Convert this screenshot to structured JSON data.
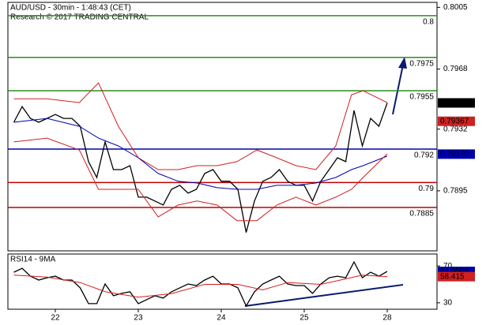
{
  "chart_data": [
    {
      "type": "line",
      "title": "AUD/USD - 30min - 1:48:43 (CET)",
      "subtitle": "Research © 2017 TRADING CENTRAL",
      "xlim": [
        -0.571,
        4.6
      ],
      "ylim": [
        0.7859,
        0.8008
      ],
      "yticks": [
        0.8005,
        0.7968,
        0.7932,
        0.7895
      ],
      "levels": [
        {
          "value": 0.8,
          "color": "#2e8b22"
        },
        {
          "value": 0.7975,
          "color": "#2e8b22"
        },
        {
          "value": 0.7955,
          "color": "#2e8b22"
        },
        {
          "value": 0.792,
          "color": "#0000b0"
        },
        {
          "value": 0.79,
          "color": "#c00000"
        },
        {
          "value": 0.7885,
          "color": "#c00000"
        }
      ],
      "markers": [
        {
          "value": 0.79477,
          "color": "#000000"
        },
        {
          "value": 0.79367,
          "color": "#d02020"
        },
        {
          "value": {
            "value": 0.7917,
            "label": "0.79170"
          },
          "color": "#0000b0"
        }
      ],
      "series": [
        {
          "color": "#000000",
          "x": [
            -0.5,
            -0.4,
            -0.3,
            -0.2,
            -0.1,
            0,
            0.1,
            0.2,
            0.3,
            0.4,
            0.5,
            0.6,
            0.7,
            0.8,
            0.9,
            1,
            1.1,
            1.2,
            1.3,
            1.4,
            1.5,
            1.6,
            1.7,
            1.8,
            1.9,
            2,
            2.1,
            2.2,
            2.3,
            2.4,
            2.5,
            2.6,
            2.7,
            2.8,
            2.9,
            3,
            3.1,
            3.2,
            3.3,
            3.4,
            3.5,
            3.6,
            3.7,
            3.8,
            3.9,
            4
          ],
          "values": [
            0.79361,
            0.79455,
            0.79384,
            0.79361,
            0.79384,
            0.79408,
            0.79384,
            0.79384,
            0.79337,
            0.79125,
            0.7903,
            0.79243,
            0.79077,
            0.79077,
            0.79101,
            0.78912,
            0.78912,
            0.78889,
            0.78865,
            0.78959,
            0.78983,
            0.78936,
            0.78959,
            0.79054,
            0.79077,
            0.79007,
            0.79007,
            0.78959,
            0.787,
            0.78889,
            0.79007,
            0.7903,
            0.79077,
            0.79007,
            0.78983,
            0.78983,
            0.78889,
            0.79007,
            0.79077,
            0.79148,
            0.79125,
            0.79432,
            0.79219,
            0.79384,
            0.79337,
            0.79477
          ]
        },
        {
          "color": "#d02020",
          "x": [
            -0.5,
            -0.1,
            0.29,
            0.52,
            0.76,
            1,
            1.24,
            1.48,
            1.71,
            1.95,
            2.19,
            2.43,
            2.67,
            2.9,
            3.14,
            3.38,
            3.57,
            3.71,
            4
          ],
          "values": [
            0.79502,
            0.79502,
            0.79479,
            0.79597,
            0.79337,
            0.79148,
            0.79077,
            0.79077,
            0.79101,
            0.79101,
            0.79125,
            0.79195,
            0.79148,
            0.79101,
            0.79077,
            0.79219,
            0.79526,
            0.7955,
            0.79479
          ]
        },
        {
          "color": "#0000b0",
          "x": [
            -0.5,
            -0.1,
            0.29,
            0.52,
            0.76,
            1,
            1.24,
            1.48,
            1.71,
            1.95,
            2.19,
            2.43,
            2.67,
            2.9,
            3.14,
            3.38,
            3.57,
            3.71,
            4
          ],
          "values": [
            0.79361,
            0.79384,
            0.79337,
            0.79266,
            0.79219,
            0.79148,
            0.79054,
            0.79007,
            0.78997,
            0.78969,
            0.78959,
            0.78959,
            0.78983,
            0.78983,
            0.78997,
            0.7903,
            0.79077,
            0.79101,
            0.79158
          ]
        },
        {
          "color": "#d02020",
          "x": [
            -0.5,
            -0.1,
            0.29,
            0.52,
            0.76,
            1,
            1.24,
            1.48,
            1.71,
            1.95,
            2.19,
            2.43,
            2.67,
            2.9,
            3.14,
            3.38,
            3.57,
            3.71,
            4
          ],
          "values": [
            0.79243,
            0.79266,
            0.79195,
            0.78959,
            0.78959,
            0.78959,
            0.78794,
            0.78865,
            0.78889,
            0.78865,
            0.78771,
            0.78771,
            0.78865,
            0.78912,
            0.78865,
            0.78912,
            0.78959,
            0.7903,
            0.79172
          ]
        }
      ]
    },
    {
      "type": "line",
      "title": "RSI14 - 9MA",
      "xlim": [
        -0.571,
        4.6
      ],
      "xticks": [
        {
          "value": 0,
          "label": "22"
        },
        {
          "value": 1,
          "label": "23"
        },
        {
          "value": 2,
          "label": "24"
        },
        {
          "value": 3,
          "label": "25"
        },
        {
          "value": 4,
          "label": "28"
        }
      ],
      "ylim": [
        23,
        83
      ],
      "yticks": [
        70,
        30
      ],
      "markers": [
        {
          "value": 64.0509,
          "color": "#0000b0"
        },
        {
          "value": 58.415,
          "color": "#d02020"
        }
      ],
      "series": [
        {
          "color": "#000000",
          "x": [
            -0.5,
            -0.4,
            -0.3,
            -0.2,
            -0.1,
            0,
            0.1,
            0.2,
            0.3,
            0.4,
            0.5,
            0.6,
            0.7,
            0.8,
            0.9,
            1,
            1.1,
            1.2,
            1.3,
            1.4,
            1.5,
            1.6,
            1.7,
            1.8,
            1.9,
            2,
            2.1,
            2.2,
            2.3,
            2.4,
            2.5,
            2.6,
            2.7,
            2.8,
            2.9,
            3,
            3.1,
            3.2,
            3.3,
            3.4,
            3.5,
            3.6,
            3.7,
            3.8,
            3.9,
            4
          ],
          "values": [
            63.2,
            67.4,
            58.9,
            54.7,
            57.2,
            58.9,
            54.7,
            54.7,
            46.2,
            29.1,
            29.1,
            50.4,
            37.7,
            40.2,
            41.9,
            29.1,
            33.4,
            37.7,
            35.1,
            41.9,
            46.2,
            50.4,
            48.7,
            54.7,
            58.9,
            50.4,
            50.4,
            46.2,
            26.6,
            41.9,
            50.4,
            54.7,
            58.9,
            50.4,
            48.7,
            48.7,
            40.2,
            50.4,
            57.2,
            58.9,
            57.2,
            74.3,
            57.2,
            63.2,
            58.9,
            64.05
          ]
        },
        {
          "color": "#d02020",
          "x": [
            -0.5,
            -0.1,
            0.3,
            0.6,
            1,
            1.4,
            1.8,
            2.2,
            2.5,
            2.8,
            3.2,
            3.5,
            3.7,
            4
          ],
          "values": [
            60,
            58,
            52,
            42,
            36,
            40,
            50,
            50,
            44,
            52,
            50,
            56,
            60,
            58.4
          ]
        }
      ]
    }
  ]
}
